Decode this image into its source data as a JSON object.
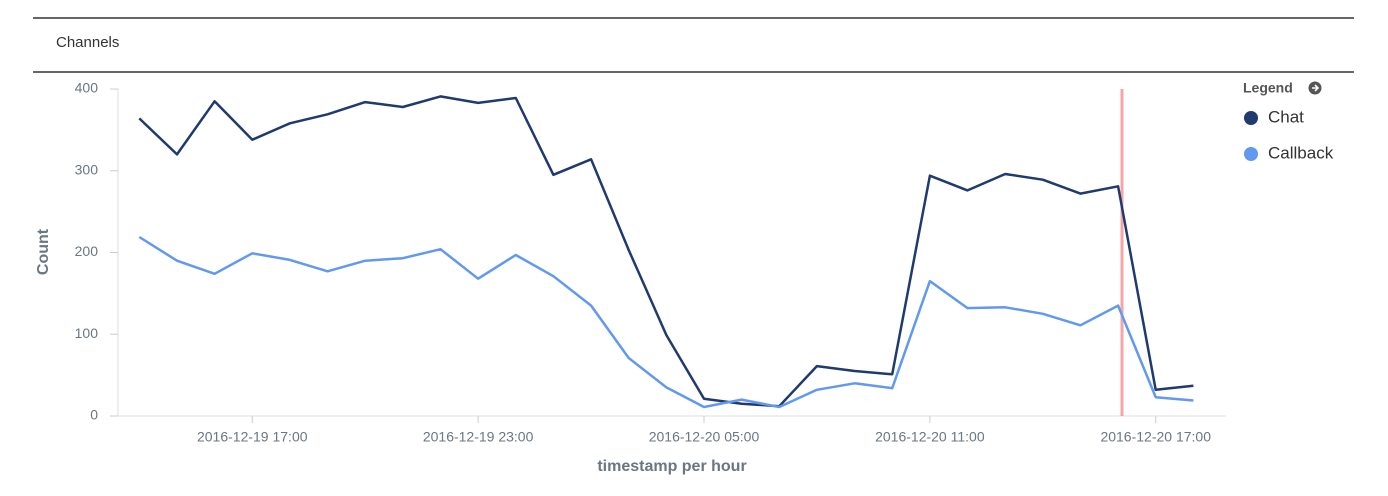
{
  "panel_title": "Channels",
  "chart_data": {
    "type": "line",
    "x": [
      "2016-12-19 14:00",
      "2016-12-19 15:00",
      "2016-12-19 16:00",
      "2016-12-19 17:00",
      "2016-12-19 18:00",
      "2016-12-19 19:00",
      "2016-12-19 20:00",
      "2016-12-19 21:00",
      "2016-12-19 22:00",
      "2016-12-19 23:00",
      "2016-12-20 00:00",
      "2016-12-20 01:00",
      "2016-12-20 02:00",
      "2016-12-20 03:00",
      "2016-12-20 04:00",
      "2016-12-20 05:00",
      "2016-12-20 06:00",
      "2016-12-20 07:00",
      "2016-12-20 08:00",
      "2016-12-20 09:00",
      "2016-12-20 10:00",
      "2016-12-20 11:00",
      "2016-12-20 12:00",
      "2016-12-20 13:00",
      "2016-12-20 14:00",
      "2016-12-20 15:00",
      "2016-12-20 16:00",
      "2016-12-20 17:00",
      "2016-12-20 18:00"
    ],
    "series": [
      {
        "name": "Chat",
        "color": "#1f3a6e",
        "values": [
          364,
          320,
          385,
          338,
          358,
          369,
          384,
          378,
          391,
          383,
          389,
          295,
          314,
          203,
          99,
          21,
          15,
          12,
          61,
          55,
          51,
          294,
          276,
          296,
          289,
          272,
          281,
          32,
          37
        ]
      },
      {
        "name": "Callback",
        "color": "#6199f0",
        "values": [
          219,
          190,
          174,
          199,
          191,
          177,
          190,
          193,
          204,
          168,
          197,
          171,
          135,
          71,
          35,
          11,
          20,
          11,
          32,
          40,
          34,
          165,
          132,
          133,
          125,
          111,
          135,
          23,
          19
        ]
      }
    ],
    "xlim": [
      "2016-12-19 13:26",
      "2016-12-20 18:52"
    ],
    "xticks": [
      "2016-12-19 17:00",
      "2016-12-19 23:00",
      "2016-12-20 05:00",
      "2016-12-20 11:00",
      "2016-12-20 17:00"
    ],
    "ylim": [
      0,
      400
    ],
    "yticks": [
      0,
      100,
      200,
      300,
      400
    ],
    "xlabel": "timestamp per hour",
    "ylabel": "Count",
    "legend_title": "Legend",
    "legend": "right"
  }
}
